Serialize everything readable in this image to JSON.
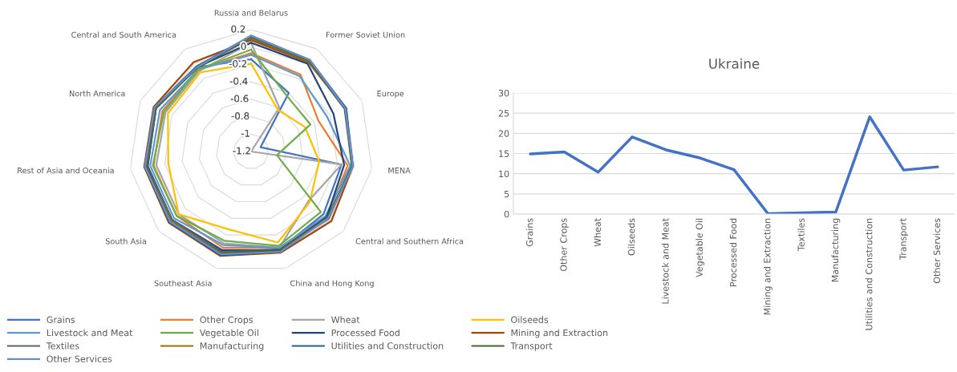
{
  "chart_data": [
    {
      "type": "radar",
      "categories": [
        "Russia and Belarus",
        "Former Soviet Union",
        "Europe",
        "MENA",
        "Central and Southern Africa",
        "China and Hong Kong",
        "Southeast Asia",
        "South Asia",
        "Rest of Asia and Oceania",
        "North America",
        "Central and South America"
      ],
      "ylim": [
        -1.2,
        0.2
      ],
      "yticks": [
        -1.2,
        -1,
        -0.8,
        -0.6,
        -0.4,
        -0.2,
        0,
        0.2
      ],
      "grid": true,
      "legend": "bottom",
      "series": [
        {
          "name": "Grains",
          "color": "#4472c4",
          "values": [
            -0.14,
            -0.4,
            -1.08,
            -0.15,
            -0.1,
            -0.03,
            0.0,
            0.0,
            0.0,
            0.0,
            -0.05
          ]
        },
        {
          "name": "Other Crops",
          "color": "#ed7d31",
          "values": [
            -0.07,
            -0.15,
            -0.35,
            -0.08,
            -0.05,
            -0.05,
            -0.05,
            -0.07,
            -0.07,
            -0.08,
            -0.08
          ]
        },
        {
          "name": "Wheat",
          "color": "#a5a5a5",
          "values": [
            0.05,
            -0.6,
            -1.2,
            -0.15,
            -0.33,
            -0.05,
            -0.1,
            -0.1,
            -0.1,
            -0.12,
            -0.1
          ]
        },
        {
          "name": "Oilseeds",
          "color": "#ffc000",
          "values": [
            -0.19,
            -0.63,
            -0.52,
            -0.41,
            -0.31,
            -0.11,
            -0.27,
            -0.1,
            -0.24,
            -0.15,
            -0.12
          ]
        },
        {
          "name": "Livestock and Meat",
          "color": "#5b9bd5",
          "values": [
            -0.09,
            -0.17,
            -0.24,
            -0.05,
            -0.07,
            -0.05,
            -0.08,
            -0.03,
            -0.03,
            -0.05,
            -0.08
          ]
        },
        {
          "name": "Vegetable Oil",
          "color": "#70ad47",
          "values": [
            -0.03,
            -0.44,
            -0.45,
            -0.9,
            -0.14,
            -0.07,
            -0.13,
            -0.07,
            -0.06,
            -0.1,
            -0.08
          ]
        },
        {
          "name": "Processed Food",
          "color": "#264478",
          "values": [
            0.05,
            0.0,
            -0.16,
            -0.12,
            -0.05,
            -0.02,
            -0.02,
            0.0,
            0.0,
            0.0,
            -0.05
          ]
        },
        {
          "name": "Mining and Extraction",
          "color": "#9e480e",
          "values": [
            0.08,
            0.02,
            -0.01,
            -0.02,
            0.02,
            0.01,
            0.05,
            0.05,
            0.04,
            0.03,
            0.02
          ]
        },
        {
          "name": "Textiles",
          "color": "#636363",
          "values": [
            0.1,
            0.03,
            -0.02,
            -0.03,
            -0.02,
            -0.02,
            0.0,
            0.0,
            0.01,
            0.0,
            -0.05
          ]
        },
        {
          "name": "Manufacturing",
          "color": "#997300",
          "values": [
            0.11,
            0.03,
            0.0,
            -0.03,
            -0.03,
            -0.01,
            0.02,
            0.02,
            0.02,
            0.01,
            -0.04
          ]
        },
        {
          "name": "Utilities and Construction",
          "color": "#255e91",
          "values": [
            0.13,
            0.05,
            0.0,
            -0.02,
            -0.04,
            0.0,
            0.04,
            0.04,
            0.03,
            0.02,
            -0.04
          ]
        },
        {
          "name": "Transport",
          "color": "#43682b",
          "values": [
            0.12,
            0.04,
            -0.01,
            -0.03,
            -0.04,
            -0.02,
            0.02,
            0.03,
            0.02,
            0.01,
            -0.06
          ]
        },
        {
          "name": "Other Services",
          "color": "#698ed0",
          "values": [
            0.13,
            0.05,
            -0.01,
            -0.02,
            -0.03,
            0.0,
            0.03,
            0.03,
            0.03,
            0.02,
            -0.05
          ]
        }
      ]
    },
    {
      "type": "line",
      "title": "Ukraine",
      "categories": [
        "Grains",
        "Other Crops",
        "Wheat",
        "Oilseeds",
        "Livestock and Meat",
        "Vegetable Oil",
        "Processed Food",
        "Mining and Extraction",
        "Textiles",
        "Manufacturing",
        "Utilities and Construction",
        "Transport",
        "Other Services"
      ],
      "values": [
        14.9,
        15.4,
        10.4,
        19.1,
        15.9,
        13.9,
        11.0,
        0.1,
        0.3,
        0.5,
        24.1,
        10.9,
        11.7
      ],
      "color": "#4472c4",
      "ylim": [
        0,
        30
      ],
      "yticks": [
        0,
        5,
        10,
        15,
        20,
        25,
        30
      ],
      "grid": "y"
    }
  ]
}
